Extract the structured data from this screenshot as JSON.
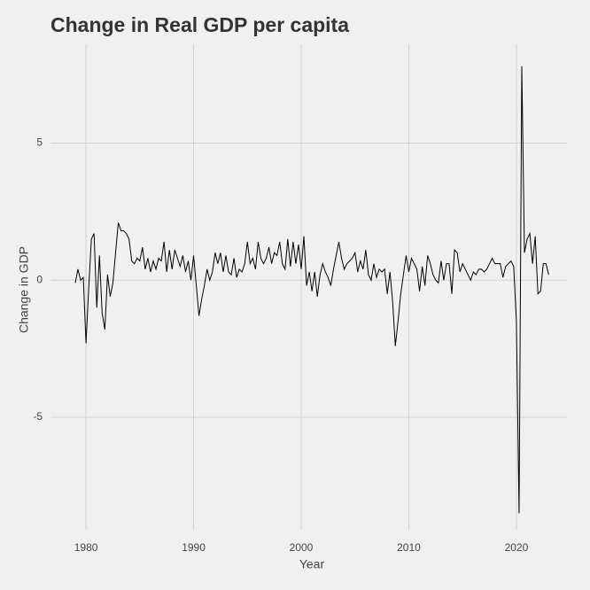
{
  "chart_data": {
    "type": "line",
    "title": "Change in Real GDP per capita",
    "x_label": "Year",
    "y_label": "Change in GDP",
    "x": [
      1979,
      1979.25,
      1979.5,
      1979.75,
      1980,
      1980.25,
      1980.5,
      1980.75,
      1981,
      1981.25,
      1981.5,
      1981.75,
      1982,
      1982.25,
      1982.5,
      1982.75,
      1983,
      1983.25,
      1983.5,
      1983.75,
      1984,
      1984.25,
      1984.5,
      1984.75,
      1985,
      1985.25,
      1985.5,
      1985.75,
      1986,
      1986.25,
      1986.5,
      1986.75,
      1987,
      1987.25,
      1987.5,
      1987.75,
      1988,
      1988.25,
      1988.5,
      1988.75,
      1989,
      1989.25,
      1989.5,
      1989.75,
      1990,
      1990.25,
      1990.5,
      1990.75,
      1991,
      1991.25,
      1991.5,
      1991.75,
      1992,
      1992.25,
      1992.5,
      1992.75,
      1993,
      1993.25,
      1993.5,
      1993.75,
      1994,
      1994.25,
      1994.5,
      1994.75,
      1995,
      1995.25,
      1995.5,
      1995.75,
      1996,
      1996.25,
      1996.5,
      1996.75,
      1997,
      1997.25,
      1997.5,
      1997.75,
      1998,
      1998.25,
      1998.5,
      1998.75,
      1999,
      1999.25,
      1999.5,
      1999.75,
      2000,
      2000.25,
      2000.5,
      2000.75,
      2001,
      2001.25,
      2001.5,
      2001.75,
      2002,
      2002.25,
      2002.5,
      2002.75,
      2003,
      2003.25,
      2003.5,
      2003.75,
      2004,
      2004.25,
      2004.5,
      2004.75,
      2005,
      2005.25,
      2005.5,
      2005.75,
      2006,
      2006.25,
      2006.5,
      2006.75,
      2007,
      2007.25,
      2007.5,
      2007.75,
      2008,
      2008.25,
      2008.5,
      2008.75,
      2009,
      2009.25,
      2009.5,
      2009.75,
      2010,
      2010.25,
      2010.5,
      2010.75,
      2011,
      2011.25,
      2011.5,
      2011.75,
      2012,
      2012.25,
      2012.5,
      2012.75,
      2013,
      2013.25,
      2013.5,
      2013.75,
      2014,
      2014.25,
      2014.5,
      2014.75,
      2015,
      2015.25,
      2015.5,
      2015.75,
      2016,
      2016.25,
      2016.5,
      2016.75,
      2017,
      2017.25,
      2017.5,
      2017.75,
      2018,
      2018.25,
      2018.5,
      2018.75,
      2019,
      2019.25,
      2019.5,
      2019.75,
      2020,
      2020.25,
      2020.5,
      2020.75,
      2021,
      2021.25,
      2021.5,
      2021.75,
      2022,
      2022.25,
      2022.5,
      2022.75,
      2023
    ],
    "series": [
      {
        "name": "Change in GDP",
        "color": "#000000",
        "values": [
          -0.1,
          0.4,
          0.0,
          0.1,
          -2.3,
          -0.3,
          1.5,
          1.7,
          -1.0,
          0.9,
          -1.2,
          -1.8,
          0.2,
          -0.6,
          -0.1,
          1.0,
          2.1,
          1.8,
          1.8,
          1.7,
          1.5,
          0.7,
          0.6,
          0.8,
          0.7,
          1.2,
          0.4,
          0.8,
          0.3,
          0.7,
          0.4,
          0.8,
          0.7,
          1.4,
          0.3,
          1.1,
          0.4,
          1.1,
          0.8,
          0.5,
          0.9,
          0.3,
          0.7,
          0.0,
          0.9,
          -0.2,
          -1.3,
          -0.7,
          -0.2,
          0.4,
          0.0,
          0.3,
          1.0,
          0.6,
          1.0,
          0.3,
          0.9,
          0.3,
          0.2,
          0.8,
          0.1,
          0.4,
          0.3,
          0.6,
          1.4,
          0.6,
          0.8,
          0.4,
          1.4,
          0.8,
          0.6,
          0.8,
          1.2,
          0.6,
          1.0,
          0.9,
          1.4,
          0.6,
          0.4,
          1.5,
          0.5,
          1.4,
          0.6,
          1.3,
          0.4,
          1.6,
          -0.2,
          0.3,
          -0.4,
          0.3,
          -0.6,
          0.2,
          0.6,
          0.3,
          0.1,
          -0.2,
          0.4,
          0.9,
          1.4,
          0.8,
          0.4,
          0.6,
          0.7,
          0.8,
          1.0,
          0.3,
          0.7,
          0.4,
          1.1,
          0.2,
          0.0,
          0.6,
          0.1,
          0.4,
          0.3,
          0.4,
          -0.5,
          0.3,
          -0.8,
          -2.4,
          -1.5,
          -0.5,
          0.2,
          0.9,
          0.3,
          0.8,
          0.6,
          0.4,
          -0.4,
          0.5,
          -0.2,
          0.9,
          0.6,
          0.2,
          0.0,
          -0.1,
          0.7,
          0.0,
          0.6,
          0.6,
          -0.5,
          1.1,
          1.0,
          0.3,
          0.6,
          0.4,
          0.2,
          0.0,
          0.3,
          0.2,
          0.4,
          0.4,
          0.3,
          0.4,
          0.6,
          0.8,
          0.6,
          0.6,
          0.6,
          0.1,
          0.5,
          0.6,
          0.7,
          0.5,
          -1.5,
          -8.5,
          7.8,
          1.0,
          1.5,
          1.7,
          0.6,
          1.6,
          -0.5,
          -0.4,
          0.6,
          0.6,
          0.2
        ]
      }
    ],
    "xlim": [
      1976.7,
      2024.7
    ],
    "ylim": [
      -9.1,
      8.6
    ],
    "xticks": [
      1980,
      1990,
      2000,
      2010,
      2020
    ],
    "yticks": [
      -5,
      0,
      5
    ],
    "grid": true
  }
}
